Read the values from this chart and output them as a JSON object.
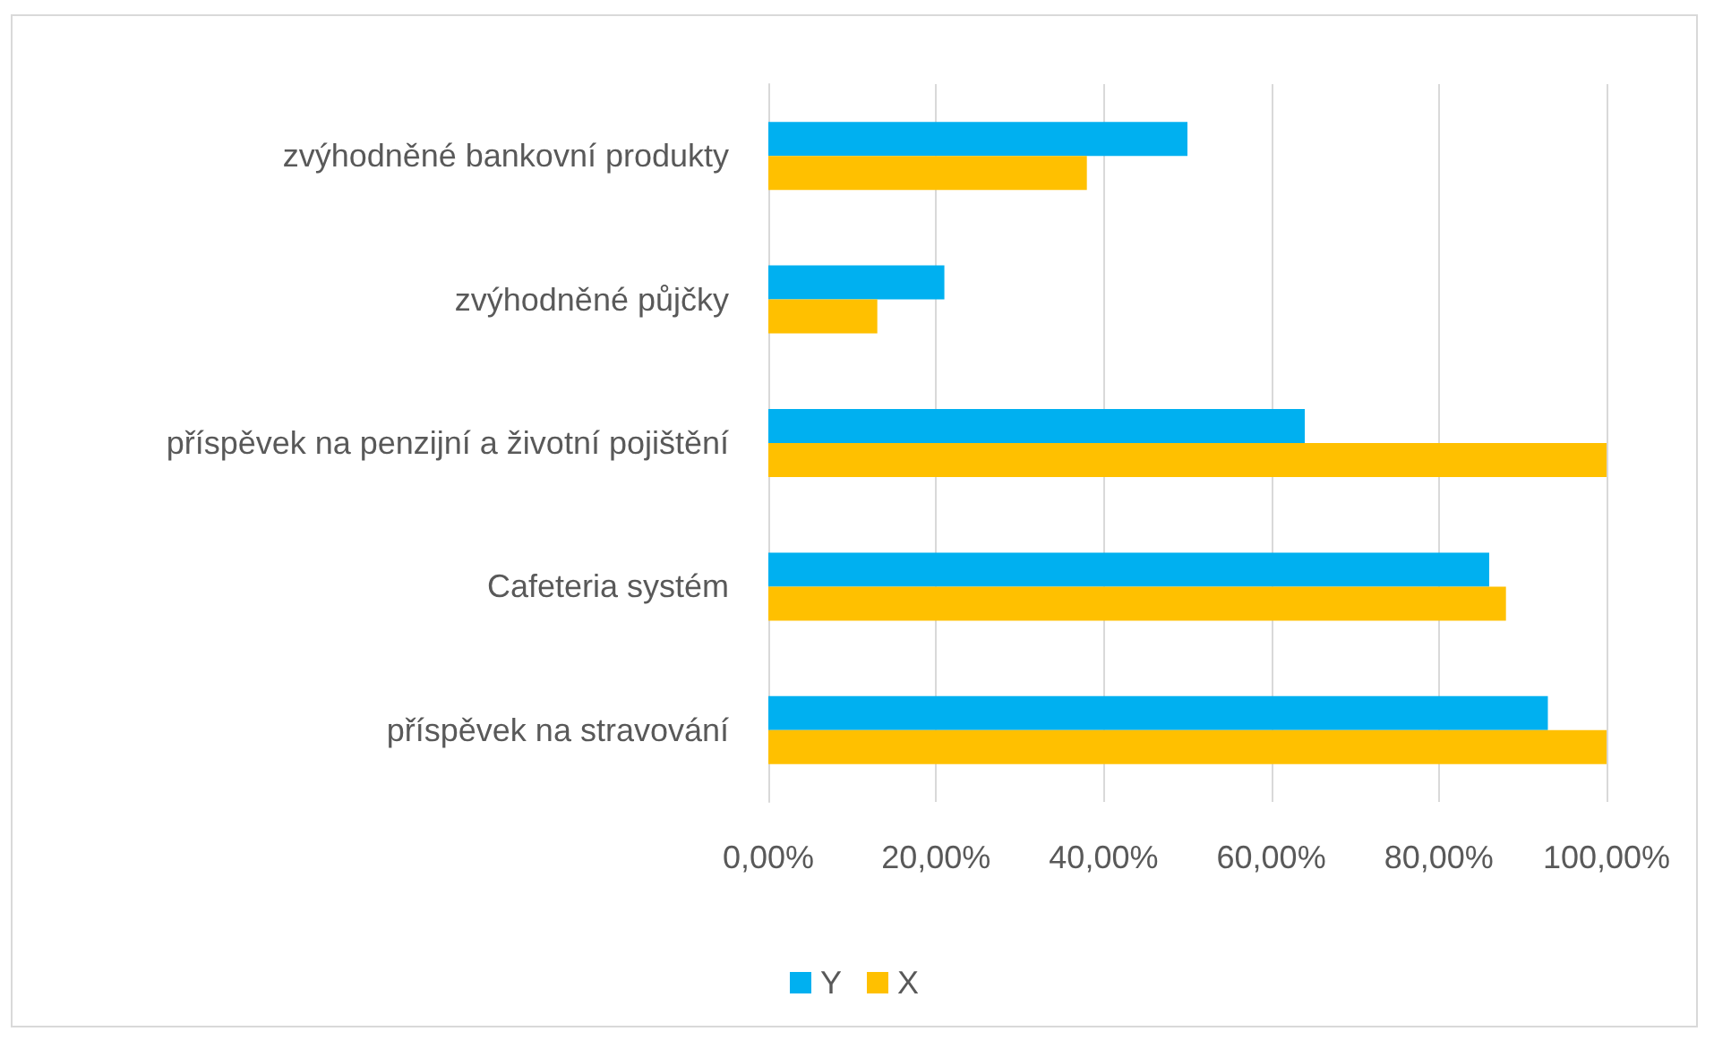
{
  "chart_data": {
    "type": "bar",
    "orientation": "horizontal",
    "categories": [
      "zvýhodněné bankovní produkty",
      "zvýhodněné půjčky",
      "příspěvek na penzijní a životní pojištění",
      "Cafeteria systém",
      "příspěvek na stravování"
    ],
    "series": [
      {
        "name": "Y",
        "color": "#00b0f0",
        "values": [
          50,
          21,
          64,
          86,
          93
        ]
      },
      {
        "name": "X",
        "color": "#ffc000",
        "values": [
          38,
          13,
          100,
          88,
          100
        ]
      }
    ],
    "xlim": [
      0,
      100
    ],
    "xticks": [
      {
        "value": 0,
        "label": "0,00%"
      },
      {
        "value": 20,
        "label": "20,00%"
      },
      {
        "value": 40,
        "label": "40,00%"
      },
      {
        "value": 60,
        "label": "60,00%"
      },
      {
        "value": 80,
        "label": "80,00%"
      },
      {
        "value": 100,
        "label": "100,00%"
      }
    ],
    "grid": "x",
    "legend": "bottom"
  }
}
